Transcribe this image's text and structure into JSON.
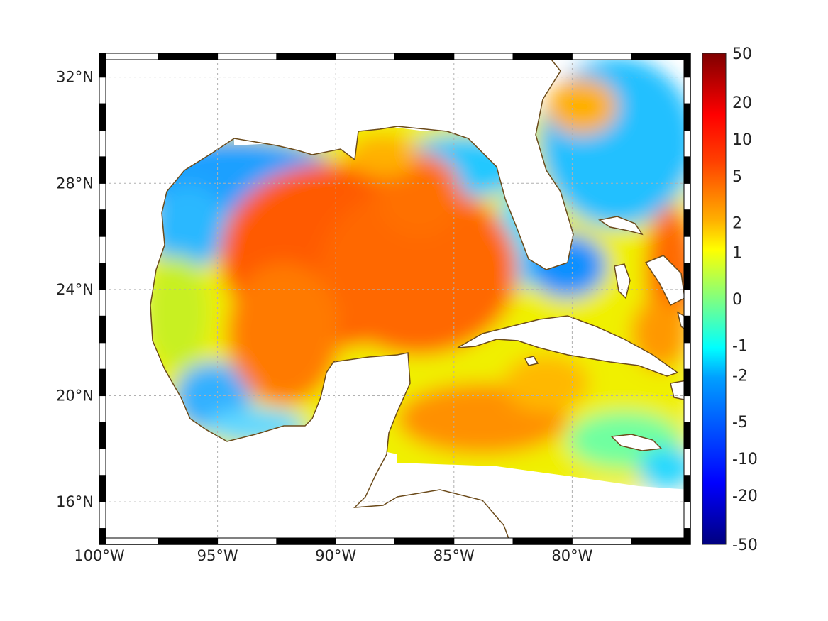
{
  "map": {
    "lon_ticks": [
      {
        "label": "100°W",
        "lon": -100
      },
      {
        "label": "95°W",
        "lon": -95
      },
      {
        "label": "90°W",
        "lon": -90
      },
      {
        "label": "85°W",
        "lon": -85
      },
      {
        "label": "80°W",
        "lon": -80
      }
    ],
    "lat_ticks": [
      {
        "label": "32°N",
        "lat": 32
      },
      {
        "label": "28°N",
        "lat": 28
      },
      {
        "label": "24°N",
        "lat": 24
      },
      {
        "label": "20°N",
        "lat": 20
      },
      {
        "label": "16°N",
        "lat": 16
      }
    ],
    "extent": {
      "lon_min": -100,
      "lon_max": -75,
      "lat_min": 14.4,
      "lat_max": 32.9
    },
    "coastline_color": "#6b4a1a",
    "land_color": "#ffffff"
  },
  "colorbar": {
    "labels": [
      "50",
      "20",
      "10",
      "5",
      "2",
      "1",
      "0",
      "-1",
      "-2",
      "-5",
      "-10",
      "-20",
      "-50"
    ],
    "label_fractions": [
      0.0,
      0.1,
      0.175,
      0.25,
      0.345,
      0.405,
      0.5,
      0.595,
      0.655,
      0.75,
      0.825,
      0.9,
      1.0
    ],
    "colormap": [
      "#00007f",
      "#0000ff",
      "#007fff",
      "#00ffff",
      "#7fff7f",
      "#ffff00",
      "#ff7f00",
      "#ff0000",
      "#7f0000"
    ]
  }
}
